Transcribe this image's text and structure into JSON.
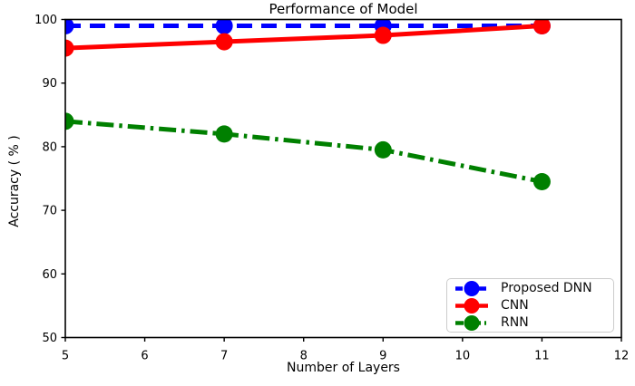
{
  "chart_data": {
    "type": "line",
    "title": "Performance of Model",
    "xlabel": "Number of Layers",
    "ylabel": "Accuracy ( % )",
    "xlim": [
      5,
      12
    ],
    "ylim": [
      50,
      100
    ],
    "xticks": [
      5,
      6,
      7,
      8,
      9,
      10,
      11,
      12
    ],
    "yticks": [
      50,
      60,
      70,
      80,
      90,
      100
    ],
    "grid": false,
    "legend_position": "lower right",
    "x": [
      5,
      7,
      9,
      11
    ],
    "series": [
      {
        "name": "Proposed DNN",
        "color": "#0000ff",
        "linestyle": "dashed",
        "values": [
          99,
          99,
          99,
          99
        ]
      },
      {
        "name": "CNN",
        "color": "#ff0000",
        "linestyle": "solid",
        "values": [
          95.5,
          96.5,
          97.5,
          99
        ]
      },
      {
        "name": "RNN",
        "color": "#008000",
        "linestyle": "dashdot",
        "values": [
          84,
          82,
          79.5,
          74.5
        ]
      }
    ]
  }
}
